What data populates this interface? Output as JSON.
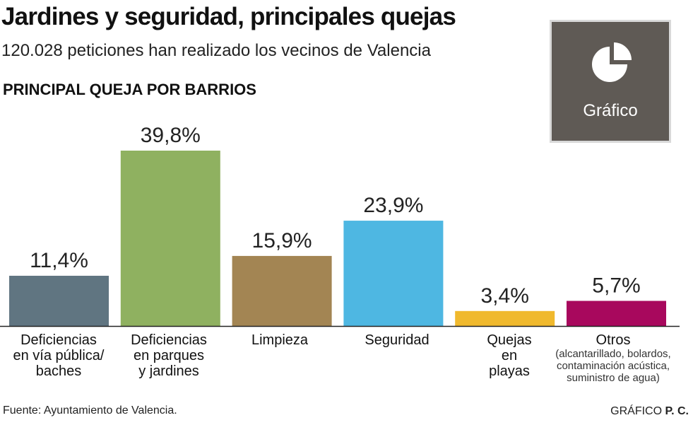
{
  "header": {
    "title": "Jardines y seguridad, principales quejas",
    "subtitle": "120.028 peticiones han realizado los vecinos de Valencia",
    "section": "PRINCIPAL QUEJA POR BARRIOS"
  },
  "badge": {
    "label": "Gráfico",
    "icon": "pie-chart-icon",
    "bg": "#5f5a55"
  },
  "chart_data": {
    "type": "bar",
    "categories": [
      "Deficiencias en vía pública/ baches",
      "Deficiencias en parques y jardines",
      "Limpieza",
      "Seguridad",
      "Quejas en playas",
      "Otros"
    ],
    "values": [
      11.4,
      39.8,
      15.9,
      23.9,
      3.4,
      5.7
    ],
    "value_labels": [
      "11,4%",
      "39,8%",
      "15,9%",
      "23,9%",
      "3,4%",
      "5,7%"
    ],
    "colors": [
      "#607581",
      "#8fb160",
      "#a38553",
      "#4eb7e2",
      "#f0b92d",
      "#a8085d"
    ],
    "ylim": [
      0,
      39.8
    ],
    "grid": false,
    "legend": "none"
  },
  "labels": {
    "cat0": [
      "Deficiencias",
      "en vía pública/",
      "baches"
    ],
    "cat1": [
      "Deficiencias",
      "en parques",
      "y jardines"
    ],
    "cat2": [
      "Limpieza"
    ],
    "cat3": [
      "Seguridad"
    ],
    "cat4": [
      "Quejas",
      "en",
      "playas"
    ],
    "cat5": [
      "Otros"
    ],
    "cat5_sub": [
      "(alcantarillado, bolardos,",
      "contaminación acústica,",
      "suministro de agua)"
    ]
  },
  "footer": {
    "source": "Fuente: Ayuntamiento de Valencia.",
    "credit_prefix": "GRÁFICO",
    "credit_name": "P. C."
  }
}
